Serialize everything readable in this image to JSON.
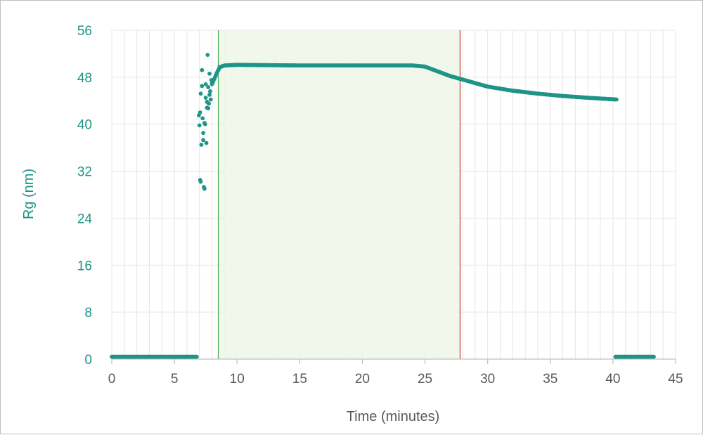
{
  "chart_data": {
    "type": "scatter",
    "title": "",
    "xlabel": "Time (minutes)",
    "ylabel": "Rg (nm)",
    "xlim": [
      0,
      45
    ],
    "ylim": [
      0,
      56
    ],
    "xticks": [
      0,
      5,
      10,
      15,
      20,
      25,
      30,
      35,
      40,
      45
    ],
    "yticks": [
      0,
      8,
      16,
      24,
      32,
      40,
      48,
      56
    ],
    "grid": true,
    "legend": "none",
    "colors": {
      "points": "#1f9488",
      "ylabel": "#1f9488",
      "yticks": "#1f9488",
      "xticks": "#595959",
      "xlabel": "#595959",
      "region_fill": "#eef6e8",
      "start_line": "#3cae4a",
      "end_line": "#c0392b",
      "grid": "#e6e6e6"
    },
    "shaded_region": {
      "x_start": 8.5,
      "x_end": 27.8
    },
    "vertical_lines": [
      {
        "x": 8.5,
        "color": "#3cae4a"
      },
      {
        "x": 27.8,
        "color": "#c0392b"
      }
    ],
    "series": [
      {
        "segments": [
          {
            "x": [
              0,
              6.8
            ],
            "y": [
              0.4,
              0.4
            ]
          },
          {
            "x": [
              8.6,
              9.0,
              10,
              15,
              20,
              24,
              25,
              26,
              27,
              28,
              29,
              30,
              32,
              34,
              36,
              38,
              40.3
            ],
            "y": [
              49.7,
              50.0,
              50.1,
              50.0,
              50.0,
              50.0,
              49.8,
              49.0,
              48.2,
              47.6,
              47.0,
              46.4,
              45.7,
              45.2,
              44.8,
              44.5,
              44.2
            ]
          },
          {
            "x": [
              8.0,
              8.2,
              8.4,
              8.6
            ],
            "y": [
              46.8,
              47.8,
              48.8,
              49.6
            ]
          },
          {
            "x": [
              40.2,
              43.3
            ],
            "y": [
              0.4,
              0.4
            ]
          }
        ],
        "scatter": {
          "x": [
            6.95,
            7.0,
            7.05,
            7.1,
            7.15,
            7.2,
            7.25,
            7.3,
            7.35,
            7.4,
            7.45,
            7.5,
            7.55,
            7.6,
            7.65,
            7.7,
            7.75,
            7.8,
            7.85,
            7.9,
            7.95,
            8.0,
            7.05,
            7.1,
            7.2,
            7.3,
            7.4,
            7.5,
            7.6,
            7.7,
            7.8
          ],
          "y": [
            41.5,
            39.8,
            42.0,
            45.2,
            36.5,
            46.5,
            41.0,
            38.5,
            29.3,
            29.0,
            40.0,
            44.5,
            36.8,
            42.8,
            51.8,
            46.3,
            43.5,
            45.0,
            45.6,
            44.2,
            47.5,
            47.0,
            30.5,
            30.2,
            49.2,
            37.3,
            40.2,
            46.8,
            43.8,
            42.7,
            48.6
          ]
        }
      }
    ]
  }
}
